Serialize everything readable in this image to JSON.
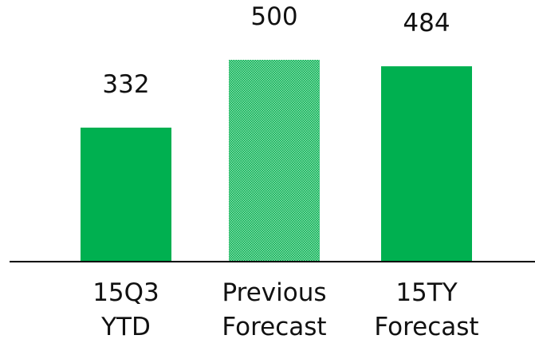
{
  "chart_data": {
    "type": "bar",
    "title": "",
    "xlabel": "",
    "ylabel": "",
    "categories": [
      [
        "15Q3",
        "YTD"
      ],
      [
        "Previous",
        "Forecast"
      ],
      [
        "15TY",
        "Forecast"
      ]
    ],
    "values": [
      332,
      500,
      484
    ],
    "data_labels": [
      "332",
      "500",
      "484"
    ],
    "ylim": [
      0,
      500
    ],
    "grid": false,
    "legend": "none",
    "bar_color": "#00b050",
    "patterned_bar_index": 1,
    "axis_color": "#000000"
  }
}
